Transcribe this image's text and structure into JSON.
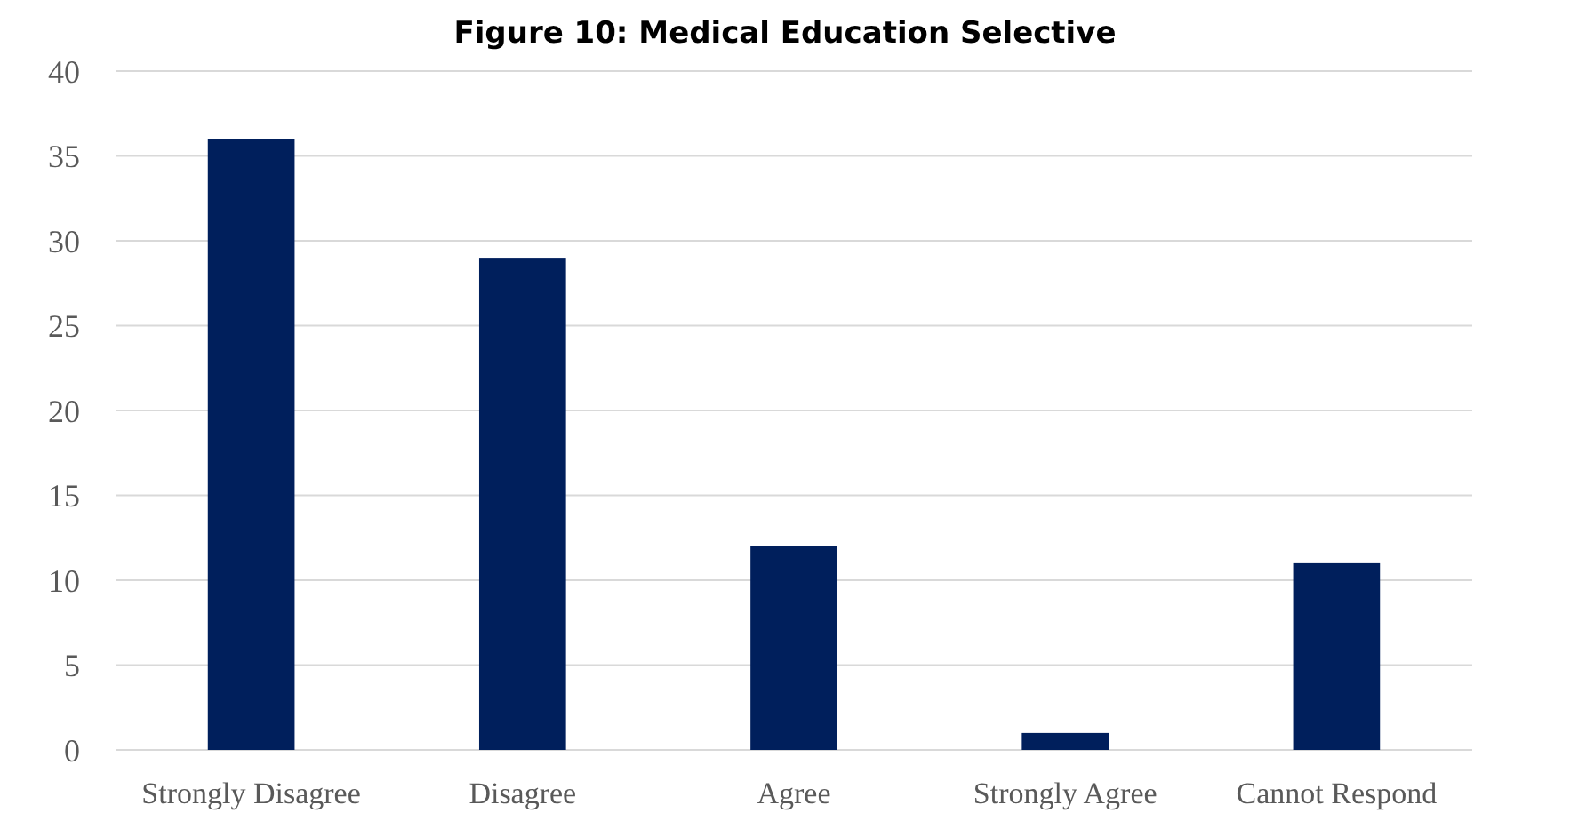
{
  "chart_data": {
    "type": "bar",
    "title": "Figure 10: Medical Education Selective",
    "categories": [
      "Strongly Disagree",
      "Disagree",
      "Agree",
      "Strongly Agree",
      "Cannot Respond"
    ],
    "values": [
      36,
      29,
      12,
      1,
      11
    ],
    "color": "#001f5c",
    "ylim": [
      0,
      40
    ],
    "yticks": [
      0,
      5,
      10,
      15,
      20,
      25,
      30,
      35,
      40
    ],
    "grid": "y"
  }
}
